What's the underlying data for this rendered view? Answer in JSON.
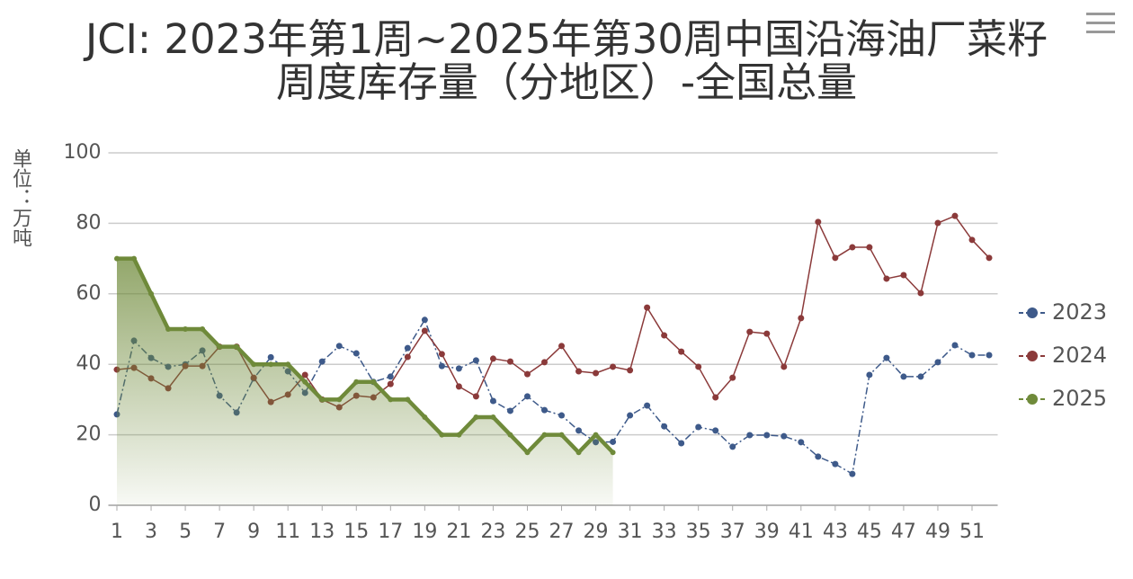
{
  "chart_data": {
    "type": "line",
    "title": "JCI: 2023年第1周~2025年第30周中国沿海油厂菜籽周度库存量（分地区）-全国总量",
    "y_label": "单位：万吨",
    "x": [
      1,
      2,
      3,
      4,
      5,
      6,
      7,
      8,
      9,
      10,
      11,
      12,
      13,
      14,
      15,
      16,
      17,
      18,
      19,
      20,
      21,
      22,
      23,
      24,
      25,
      26,
      27,
      28,
      29,
      30,
      31,
      32,
      33,
      34,
      35,
      36,
      37,
      38,
      39,
      40,
      41,
      42,
      43,
      44,
      45,
      46,
      47,
      48,
      49,
      50,
      51,
      52
    ],
    "xlim": [
      0.5,
      52.5
    ],
    "xticks": [
      1,
      3,
      5,
      7,
      9,
      11,
      13,
      15,
      17,
      19,
      21,
      23,
      25,
      27,
      29,
      31,
      33,
      35,
      37,
      39,
      41,
      43,
      45,
      47,
      49,
      51
    ],
    "ylim": [
      0,
      100
    ],
    "yticks": [
      0,
      20,
      40,
      60,
      80,
      100
    ],
    "grid": true,
    "legend": "right",
    "series": [
      {
        "name": "2023",
        "color": "#3e5a8a",
        "values": [
          25.8,
          46.7,
          41.8,
          39.3,
          40,
          43.9,
          31.1,
          26.3,
          36,
          42,
          38,
          31.9,
          40.8,
          45.2,
          43.1,
          35,
          36.5,
          44.6,
          52.6,
          39.5,
          38.8,
          41.1,
          29.6,
          26.8,
          30.9,
          27,
          25.5,
          21.2,
          17.9,
          18,
          25.5,
          28.3,
          22.4,
          17.6,
          22.2,
          21.2,
          16.6,
          19.9,
          19.9,
          19.6,
          17.9,
          13.8,
          11.7,
          8.9,
          37,
          41.8,
          36.5,
          36.5,
          40.6,
          45.4,
          42.6,
          42.6
        ]
      },
      {
        "name": "2024",
        "color": "#8b3a3a",
        "values": [
          38.5,
          39,
          36,
          33.2,
          39.5,
          39.5,
          45,
          45,
          36.2,
          29.3,
          31.4,
          37,
          30,
          27.8,
          31.1,
          30.6,
          34.4,
          42.1,
          49.5,
          42.9,
          33.7,
          30.9,
          41.6,
          40.8,
          37.2,
          40.6,
          45.2,
          38,
          37.5,
          39.3,
          38.3,
          56.1,
          48.2,
          43.6,
          39.3,
          30.6,
          36.2,
          49.2,
          48.7,
          39.3,
          53.1,
          80.4,
          70.2,
          73.2,
          73.2,
          64.3,
          65.3,
          60.2,
          80.1,
          82.1,
          75.3,
          70.2
        ]
      },
      {
        "name": "2025",
        "color": "#6f8a3a",
        "area": true,
        "values": [
          70,
          70,
          60,
          50,
          50,
          50,
          45,
          45,
          40,
          40,
          40,
          35,
          30,
          30,
          35,
          35,
          30,
          30,
          25,
          20,
          20,
          25,
          25,
          20,
          15,
          20,
          20,
          15,
          20,
          15,
          null,
          null,
          null,
          null,
          null,
          null,
          null,
          null,
          null,
          null,
          null,
          null,
          null,
          null,
          null,
          null,
          null,
          null,
          null,
          null,
          null,
          null
        ]
      }
    ]
  }
}
